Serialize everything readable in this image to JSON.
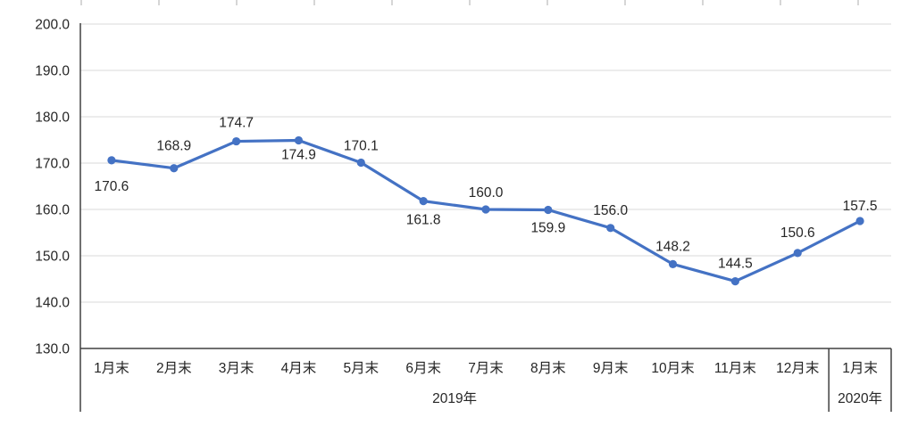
{
  "colors": {
    "series": "#4472C4",
    "grid": "#D9D9D9",
    "axis": "#404040",
    "text": "#262626",
    "top_ticks": "#C8C8C8"
  },
  "chart_data": {
    "type": "line",
    "title": "",
    "xlabel": "",
    "ylabel": "",
    "legend": "none",
    "grid": true,
    "categories": [
      "1月末",
      "2月末",
      "3月末",
      "4月末",
      "5月末",
      "6月末",
      "7月末",
      "8月末",
      "9月末",
      "10月末",
      "11月末",
      "12月末",
      "1月末"
    ],
    "values": [
      170.6,
      168.9,
      174.7,
      174.9,
      170.1,
      161.8,
      160.0,
      159.9,
      156.0,
      148.2,
      144.5,
      150.6,
      157.5
    ],
    "data_labels": [
      "170.6",
      "168.9",
      "174.7",
      "174.9",
      "170.1",
      "161.8",
      "160.0",
      "159.9",
      "156.0",
      "148.2",
      "144.5",
      "150.6",
      "157.5"
    ],
    "label_positions": [
      "below",
      "above",
      "above",
      "below",
      "above",
      "below",
      "above",
      "below",
      "above",
      "above",
      "above",
      "above",
      "above"
    ],
    "label_dy": [
      34,
      -20,
      -16,
      21,
      -14,
      26,
      -14,
      25,
      -15,
      -15,
      -15,
      -18,
      -12
    ],
    "ylim": [
      130,
      200
    ],
    "yticks": [
      200,
      190,
      180,
      170,
      160,
      150,
      140,
      130
    ],
    "ytick_labels": [
      "200.0",
      "190.0",
      "180.0",
      "170.0",
      "160.0",
      "150.0",
      "140.0",
      "130.0"
    ],
    "x_groups": [
      {
        "label": "2019年",
        "from": 0,
        "to": 11
      },
      {
        "label": "2020年",
        "from": 12,
        "to": 12
      }
    ]
  }
}
